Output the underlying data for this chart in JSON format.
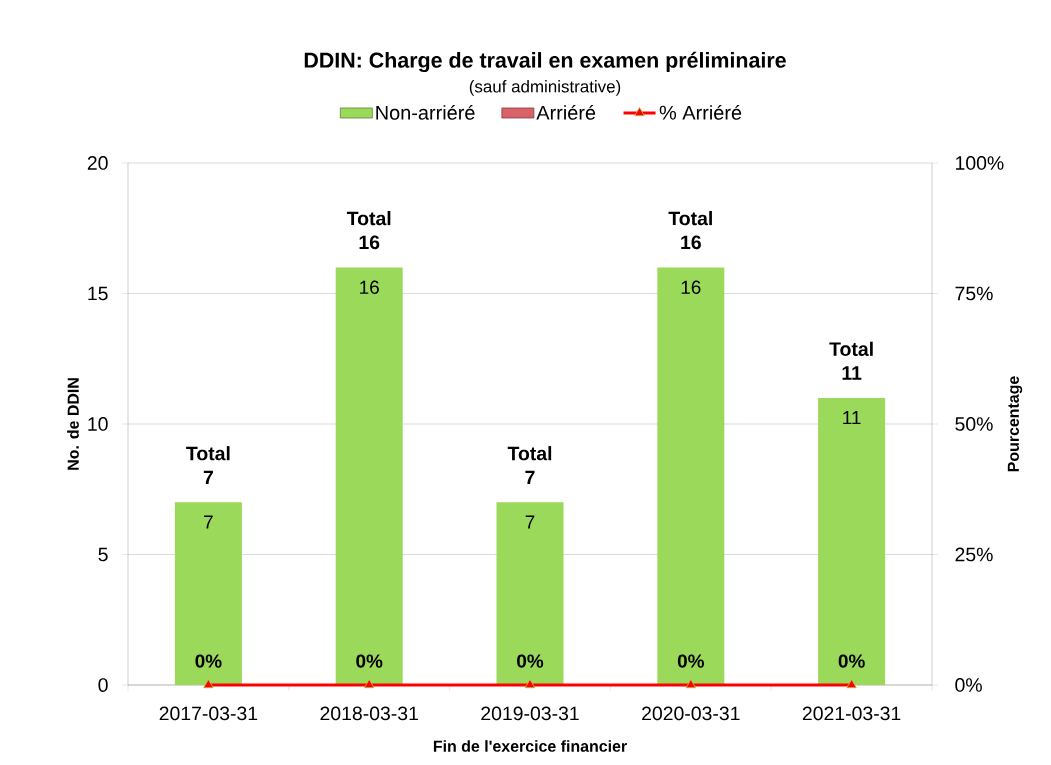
{
  "chart_data": {
    "type": "bar",
    "title": "DDIN: Charge de travail en examen préliminaire",
    "subtitle": "(sauf administrative)",
    "xlabel": "Fin de l'exercice financier",
    "ylabel": "No. de DDIN",
    "y2label": "Pourcentage",
    "categories": [
      "2017-03-31",
      "2018-03-31",
      "2019-03-31",
      "2020-03-31",
      "2021-03-31"
    ],
    "stacked": true,
    "series": [
      {
        "name": "Non-arriéré",
        "color": "#9ad95a",
        "values": [
          7,
          16,
          7,
          16,
          11
        ],
        "value_labels": [
          "7",
          "16",
          "7",
          "16",
          "11"
        ]
      },
      {
        "name": "Arriéré",
        "color": "#d9626a",
        "values": [
          0,
          0,
          0,
          0,
          0
        ]
      },
      {
        "name": "% Arriéré",
        "type": "line",
        "axis": "y2",
        "color": "#ff0000",
        "marker": "triangle",
        "values": [
          0,
          0,
          0,
          0,
          0
        ],
        "value_labels": [
          "0%",
          "0%",
          "0%",
          "0%",
          "0%"
        ]
      }
    ],
    "totals": [
      "Total 7",
      "Total 16",
      "Total 7",
      "Total 16",
      "Total 11"
    ],
    "ylim": [
      0,
      20
    ],
    "yticks": [
      0,
      5,
      10,
      15,
      20
    ],
    "y2lim": [
      0,
      100
    ],
    "y2ticks": [
      {
        "value": 0,
        "label": "0%"
      },
      {
        "value": 25,
        "label": "25%"
      },
      {
        "value": 50,
        "label": "50%"
      },
      {
        "value": 75,
        "label": "75%"
      },
      {
        "value": 100,
        "label": "100%"
      }
    ],
    "grid": "y",
    "legend": "top"
  }
}
